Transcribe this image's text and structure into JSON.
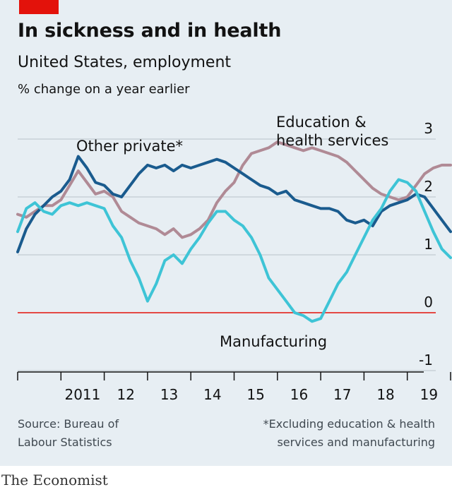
{
  "header": {
    "title": "In sickness and in health",
    "subtitle": "United States, employment",
    "unit": "% change on a year earlier"
  },
  "colors": {
    "background": "#e7eef3",
    "brand_red": "#e3120b",
    "education_health": "#b08a95",
    "other_private": "#1a5b8e",
    "manufacturing": "#3ec4d6",
    "zero_line": "#e3120b",
    "grid": "#c3ccd2"
  },
  "footer": {
    "source_line1": "Source: Bureau of",
    "source_line2": "Labour Statistics",
    "note_line1": "*Excluding education & health",
    "note_line2": "services and manufacturing",
    "brand": "The Economist"
  },
  "chart_data": {
    "type": "line",
    "title": "In sickness and in health",
    "subtitle": "United States, employment",
    "ylabel": "% change on a year earlier",
    "xlabel": "",
    "ylim": [
      -1,
      3
    ],
    "xlim": [
      2010.0,
      2020.2
    ],
    "y_ticks": [
      3,
      2,
      1,
      0,
      -1
    ],
    "y_tick_labels": [
      "3",
      "2",
      "1",
      "0",
      "-1"
    ],
    "x_tick_labels": [
      "2011",
      "12",
      "13",
      "14",
      "15",
      "16",
      "17",
      "18",
      "19"
    ],
    "x_tick_positions": [
      2011,
      2012,
      2013,
      2014,
      2015,
      2016,
      2017,
      2018,
      2019
    ],
    "grid": true,
    "legend": "direct labels on lines",
    "series": [
      {
        "name": "Education & health services",
        "label_line1": "Education &",
        "label_line2": "health services",
        "color": "#b08a95",
        "x": [
          2010.0,
          2010.2,
          2010.4,
          2010.6,
          2010.8,
          2011.0,
          2011.2,
          2011.4,
          2011.6,
          2011.8,
          2012.0,
          2012.2,
          2012.4,
          2012.6,
          2012.8,
          2013.0,
          2013.2,
          2013.4,
          2013.6,
          2013.8,
          2014.0,
          2014.2,
          2014.4,
          2014.6,
          2014.8,
          2015.0,
          2015.2,
          2015.4,
          2015.6,
          2015.8,
          2016.0,
          2016.2,
          2016.4,
          2016.6,
          2016.8,
          2017.0,
          2017.2,
          2017.4,
          2017.6,
          2017.8,
          2018.0,
          2018.2,
          2018.4,
          2018.6,
          2018.8,
          2019.0,
          2019.2,
          2019.4,
          2019.6,
          2019.8,
          2020.0
        ],
        "values": [
          1.7,
          1.65,
          1.75,
          1.85,
          1.85,
          1.95,
          2.2,
          2.45,
          2.25,
          2.05,
          2.1,
          2.0,
          1.75,
          1.65,
          1.55,
          1.5,
          1.45,
          1.35,
          1.45,
          1.3,
          1.35,
          1.45,
          1.6,
          1.9,
          2.1,
          2.25,
          2.55,
          2.75,
          2.8,
          2.85,
          2.95,
          2.9,
          2.85,
          2.8,
          2.85,
          2.8,
          2.75,
          2.7,
          2.6,
          2.45,
          2.3,
          2.15,
          2.05,
          2.0,
          1.95,
          2.0,
          2.2,
          2.4,
          2.5,
          2.55,
          2.55
        ]
      },
      {
        "name": "Other private*",
        "label_line1": "Other private*",
        "color": "#1a5b8e",
        "x": [
          2010.0,
          2010.2,
          2010.4,
          2010.6,
          2010.8,
          2011.0,
          2011.2,
          2011.4,
          2011.6,
          2011.8,
          2012.0,
          2012.2,
          2012.4,
          2012.6,
          2012.8,
          2013.0,
          2013.2,
          2013.4,
          2013.6,
          2013.8,
          2014.0,
          2014.2,
          2014.4,
          2014.6,
          2014.8,
          2015.0,
          2015.2,
          2015.4,
          2015.6,
          2015.8,
          2016.0,
          2016.2,
          2016.4,
          2016.6,
          2016.8,
          2017.0,
          2017.2,
          2017.4,
          2017.6,
          2017.8,
          2018.0,
          2018.2,
          2018.4,
          2018.6,
          2018.8,
          2019.0,
          2019.2,
          2019.4,
          2019.6,
          2019.8,
          2020.0
        ],
        "values": [
          1.05,
          1.45,
          1.7,
          1.85,
          2.0,
          2.1,
          2.3,
          2.7,
          2.5,
          2.25,
          2.2,
          2.05,
          2.0,
          2.2,
          2.4,
          2.55,
          2.5,
          2.55,
          2.45,
          2.55,
          2.5,
          2.55,
          2.6,
          2.65,
          2.6,
          2.5,
          2.4,
          2.3,
          2.2,
          2.15,
          2.05,
          2.1,
          1.95,
          1.9,
          1.85,
          1.8,
          1.8,
          1.75,
          1.6,
          1.55,
          1.6,
          1.5,
          1.75,
          1.85,
          1.9,
          1.95,
          2.05,
          2.0,
          1.8,
          1.6,
          1.4
        ]
      },
      {
        "name": "Manufacturing",
        "label_line1": "Manufacturing",
        "color": "#3ec4d6",
        "x": [
          2010.0,
          2010.2,
          2010.4,
          2010.6,
          2010.8,
          2011.0,
          2011.2,
          2011.4,
          2011.6,
          2011.8,
          2012.0,
          2012.2,
          2012.4,
          2012.6,
          2012.8,
          2013.0,
          2013.2,
          2013.4,
          2013.6,
          2013.8,
          2014.0,
          2014.2,
          2014.4,
          2014.6,
          2014.8,
          2015.0,
          2015.2,
          2015.4,
          2015.6,
          2015.8,
          2016.0,
          2016.2,
          2016.4,
          2016.6,
          2016.8,
          2017.0,
          2017.2,
          2017.4,
          2017.6,
          2017.8,
          2018.0,
          2018.2,
          2018.4,
          2018.6,
          2018.8,
          2019.0,
          2019.2,
          2019.4,
          2019.6,
          2019.8,
          2020.0
        ],
        "values": [
          1.4,
          1.8,
          1.9,
          1.75,
          1.7,
          1.85,
          1.9,
          1.85,
          1.9,
          1.85,
          1.8,
          1.5,
          1.3,
          0.9,
          0.6,
          0.2,
          0.5,
          0.9,
          1.0,
          0.85,
          1.1,
          1.3,
          1.55,
          1.75,
          1.75,
          1.6,
          1.5,
          1.3,
          1.0,
          0.6,
          0.4,
          0.2,
          0.0,
          -0.05,
          -0.15,
          -0.1,
          0.2,
          0.5,
          0.7,
          1.0,
          1.3,
          1.6,
          1.8,
          2.1,
          2.3,
          2.25,
          2.1,
          1.75,
          1.4,
          1.1,
          0.95
        ]
      }
    ]
  }
}
